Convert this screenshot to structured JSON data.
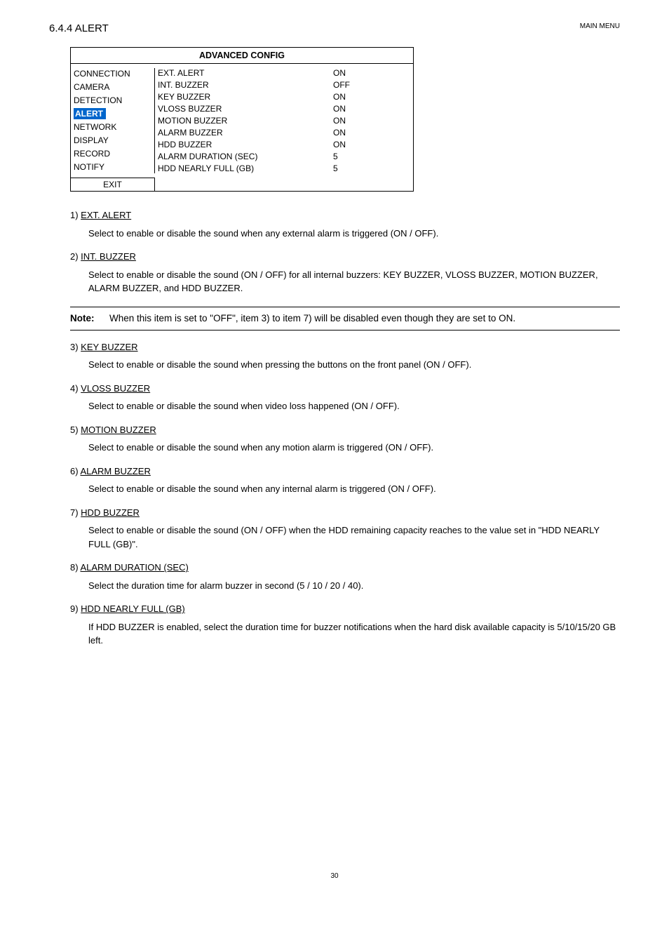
{
  "header": {
    "right": "MAIN MENU"
  },
  "section_title": "6.4.4 ALERT",
  "config": {
    "title": "ADVANCED CONFIG",
    "sidebar": [
      "CONNECTION",
      "CAMERA",
      "DETECTION",
      "ALERT",
      "NETWORK",
      "DISPLAY",
      "RECORD",
      "NOTIFY"
    ],
    "active_index": 3,
    "settings": [
      {
        "label": "EXT. ALERT",
        "value": "ON"
      },
      {
        "label": "INT. BUZZER",
        "value": "OFF"
      },
      {
        "label": "KEY BUZZER",
        "value": "ON"
      },
      {
        "label": "VLOSS BUZZER",
        "value": "ON"
      },
      {
        "label": "MOTION BUZZER",
        "value": "ON"
      },
      {
        "label": "ALARM BUZZER",
        "value": "ON"
      },
      {
        "label": "HDD BUZZER",
        "value": "ON"
      },
      {
        "label": "ALARM DURATION (SEC)",
        "value": "5"
      },
      {
        "label": "HDD NEARLY FULL (GB)",
        "value": "5"
      }
    ],
    "exit": "EXIT"
  },
  "items": [
    {
      "num": "1)",
      "title": "EXT. ALERT",
      "body": "Select to enable or disable the sound when any external alarm is triggered (ON / OFF)."
    },
    {
      "num": "2)",
      "title": "INT. BUZZER",
      "body": "Select to enable or disable the sound (ON / OFF) for all internal buzzers: KEY BUZZER, VLOSS BUZZER, MOTION BUZZER, ALARM BUZZER, and HDD BUZZER."
    }
  ],
  "note": {
    "label": "Note:",
    "text": "When this item is set to \"OFF\", item 3) to item 7) will be disabled even though they are set to ON."
  },
  "items2": [
    {
      "num": "3)",
      "title": "KEY BUZZER",
      "body": "Select to enable or disable the sound when pressing the buttons on the front panel (ON / OFF)."
    },
    {
      "num": "4)",
      "title": "VLOSS BUZZER",
      "body": "Select to enable or disable the sound when video loss happened (ON / OFF)."
    },
    {
      "num": "5)",
      "title": "MOTION BUZZER",
      "body": "Select to enable or disable the sound when any motion alarm is triggered (ON / OFF)."
    },
    {
      "num": "6)",
      "title": "ALARM BUZZER",
      "body": "Select to enable or disable the sound when any internal alarm is triggered (ON / OFF)."
    },
    {
      "num": "7)",
      "title": "HDD BUZZER",
      "body": "Select to enable or disable the sound (ON / OFF) when the HDD remaining capacity reaches to the value set in \"HDD NEARLY FULL (GB)\"."
    },
    {
      "num": "8)",
      "title": "ALARM DURATION (SEC)",
      "body": "Select the duration time for alarm buzzer in second (5 / 10 / 20 / 40)."
    },
    {
      "num": "9)",
      "title": "HDD NEARLY FULL (GB)",
      "body": "If HDD BUZZER is enabled, select the duration time for buzzer notifications when the hard disk available capacity is 5/10/15/20 GB left."
    }
  ],
  "page_number": "30",
  "colors": {
    "active_bg": "#0066cc",
    "active_fg": "#ffffff"
  }
}
